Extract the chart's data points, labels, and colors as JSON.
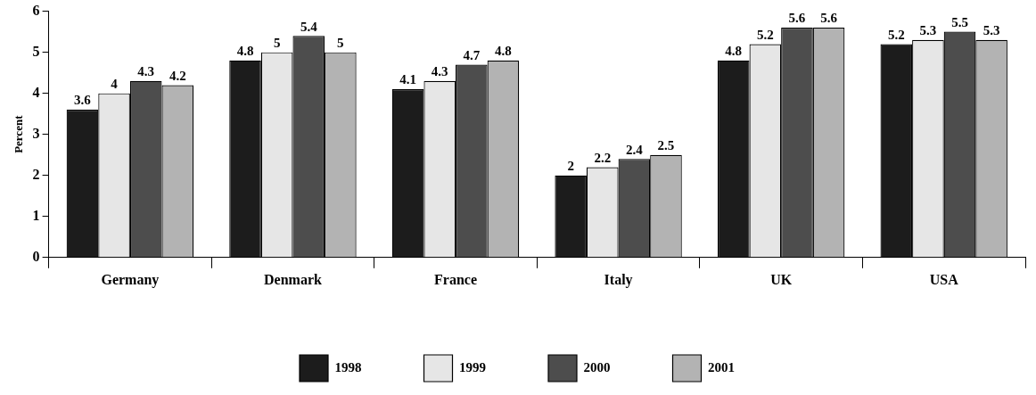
{
  "chart_data": {
    "type": "bar",
    "ylabel": "Percent",
    "categories": [
      "Germany",
      "Denmark",
      "France",
      "Italy",
      "UK",
      "USA"
    ],
    "series": [
      {
        "name": "1998",
        "color": "#1c1c1c",
        "values": [
          3.6,
          4.8,
          4.1,
          2,
          4.8,
          5.2
        ]
      },
      {
        "name": "1999",
        "color": "#e6e6e6",
        "values": [
          4,
          5,
          4.3,
          2.2,
          5.2,
          5.3
        ]
      },
      {
        "name": "2000",
        "color": "#4d4d4d",
        "values": [
          4.3,
          5.4,
          4.7,
          2.4,
          5.6,
          5.5
        ]
      },
      {
        "name": "2001",
        "color": "#b3b3b3",
        "values": [
          4.2,
          5,
          4.8,
          2.5,
          5.6,
          5.3
        ]
      }
    ],
    "ylim": [
      0,
      6
    ],
    "yticks": [
      0,
      1,
      2,
      3,
      4,
      5,
      6
    ],
    "grid": false,
    "legend": "bottom",
    "data_labels": true
  }
}
